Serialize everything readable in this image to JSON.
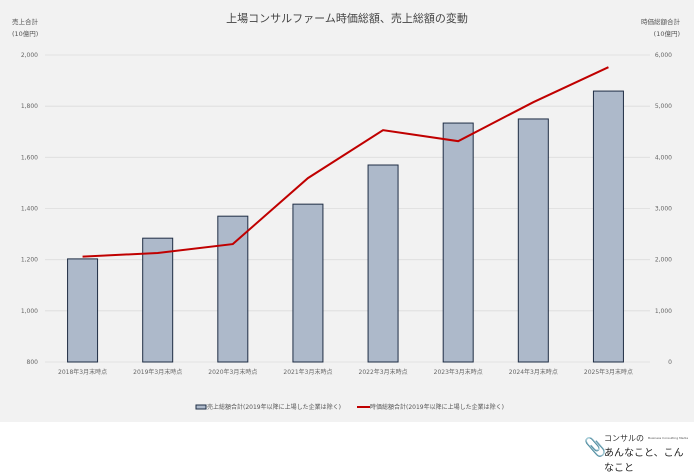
{
  "chart_data": {
    "type": "bar+line",
    "title": "上場コンサルファーム時価総額、売上総額の変動",
    "ylabel_left": [
      "売上合計",
      "(10億円)"
    ],
    "ylabel_right": [
      "時価総額合計",
      "(10億円)"
    ],
    "categories": [
      "2018年3月末時点",
      "2019年3月末時点",
      "2020年3月末時点",
      "2021年3月末時点",
      "2022年3月末時点",
      "2023年3月末時点",
      "2024年3月末時点",
      "2025年3月末時点"
    ],
    "ylim_left": [
      800,
      2000
    ],
    "yticks_left": [
      "800",
      "1,000",
      "1,200",
      "1,400",
      "1,600",
      "1,800",
      "2,000"
    ],
    "ylim_right": [
      0,
      6000
    ],
    "yticks_right": [
      "0",
      "1,000",
      "2,000",
      "3,000",
      "4,000",
      "5,000",
      "6,000"
    ],
    "grid": true,
    "legend_position": "bottom",
    "series": [
      {
        "name": "売上総額合計(2019年以降に上場した企業は除く)",
        "type": "bar",
        "axis": "left",
        "color": "#adb9ca",
        "edge_color": "#1f2d44",
        "values": [
          1203,
          1284,
          1370,
          1417,
          1570,
          1734,
          1750,
          1859
        ]
      },
      {
        "name": "時価総額合計(2019年以降に上場した企業は除く)",
        "type": "line",
        "axis": "right",
        "color": "#c00000",
        "values": [
          2060,
          2130,
          2305,
          3594,
          4531,
          4316,
          5078,
          5762
        ]
      }
    ]
  },
  "branding": {
    "logo_line1": "コンサルの",
    "logo_sub": "Business Consulting Media",
    "logo_line2": "あんなこと、こんなこと"
  }
}
